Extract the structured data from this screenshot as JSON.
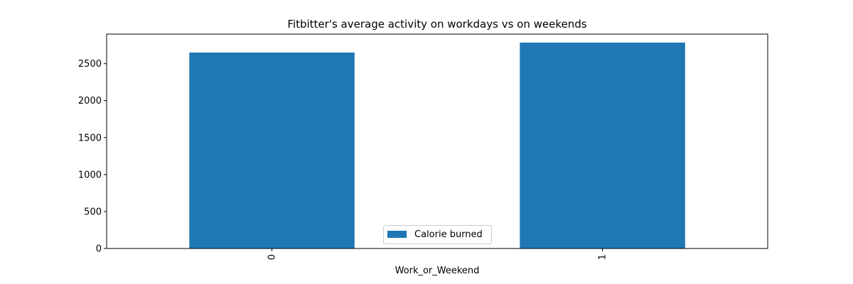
{
  "chart_data": {
    "type": "bar",
    "title": "Fitbitter's average activity on workdays vs on weekends",
    "xlabel": "Work_or_Weekend",
    "ylabel": "",
    "categories": [
      "0",
      "1"
    ],
    "series": [
      {
        "name": "Calorie burned",
        "values": [
          2650,
          2785
        ],
        "color": "#1f77b4"
      }
    ],
    "ylim": [
      0,
      2900
    ],
    "yticks": [
      0,
      500,
      1000,
      1500,
      2000,
      2500
    ],
    "ytick_labels": [
      "0",
      "500",
      "1000",
      "1500",
      "2000",
      "2500"
    ],
    "x_tick_rotation": "vertical",
    "grid": false,
    "legend_position": "lower center"
  }
}
